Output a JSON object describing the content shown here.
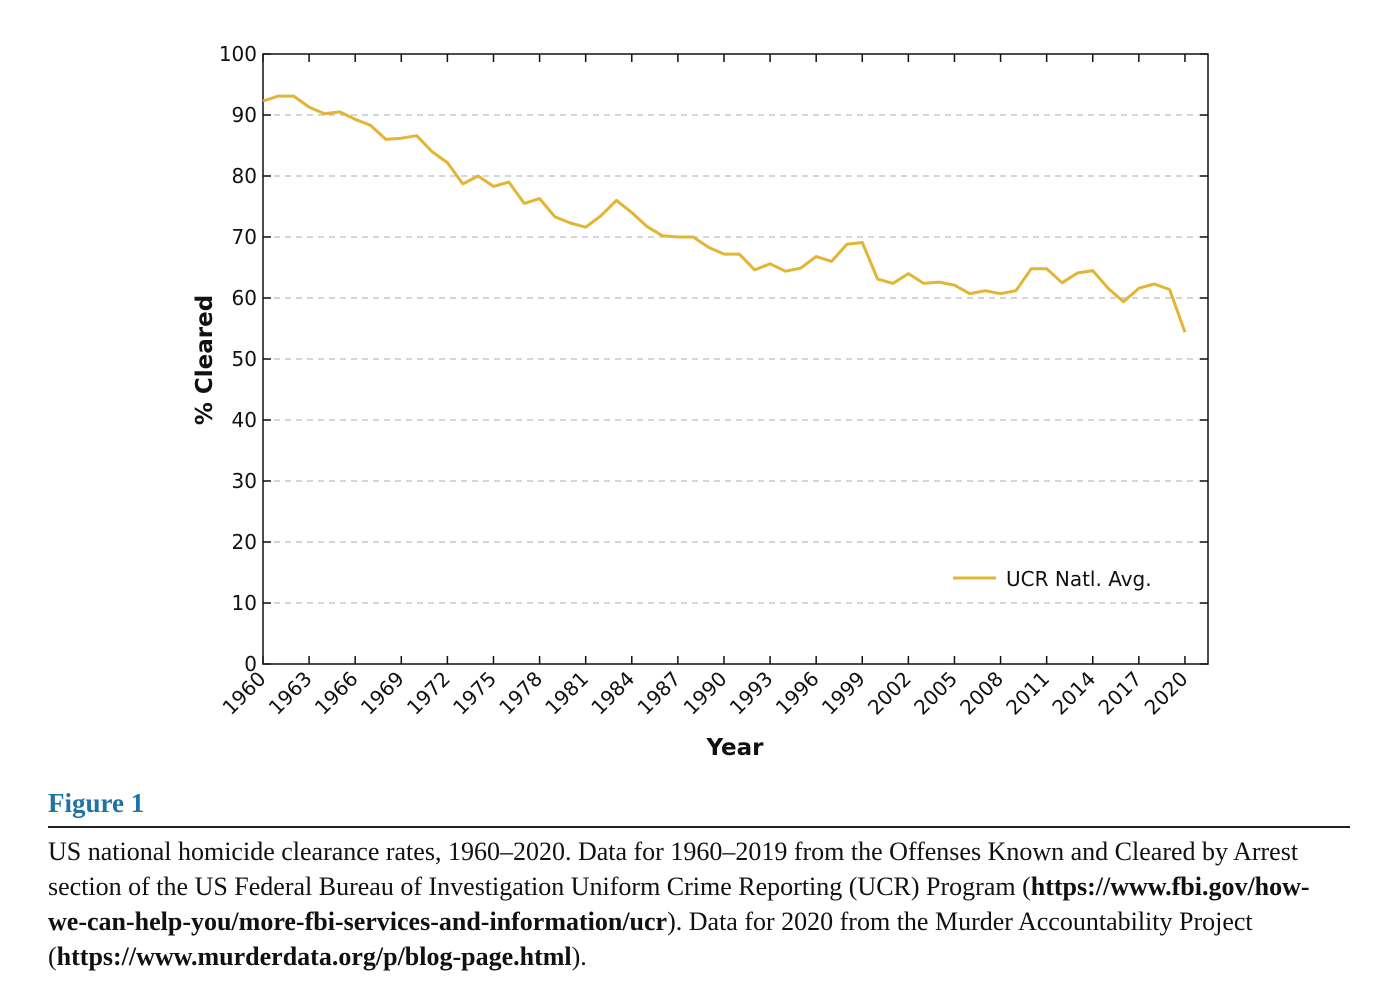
{
  "chart_data": {
    "type": "line",
    "xlabel": "Year",
    "ylabel": "% Cleared",
    "ylim": [
      0,
      100
    ],
    "xlim": [
      1960,
      2021.5
    ],
    "y_ticks": [
      0,
      10,
      20,
      30,
      40,
      50,
      60,
      70,
      80,
      90,
      100
    ],
    "x_ticks": [
      1960,
      1963,
      1966,
      1969,
      1972,
      1975,
      1978,
      1981,
      1984,
      1987,
      1990,
      1993,
      1996,
      1999,
      2002,
      2005,
      2008,
      2011,
      2014,
      2017,
      2020
    ],
    "grid": "horizontal-dashed",
    "legend_position": "bottom-right",
    "series": [
      {
        "name": "UCR Natl. Avg.",
        "color": "#e3b534",
        "x": [
          1960,
          1961,
          1962,
          1963,
          1964,
          1965,
          1966,
          1967,
          1968,
          1969,
          1970,
          1971,
          1972,
          1973,
          1974,
          1975,
          1976,
          1977,
          1978,
          1979,
          1980,
          1981,
          1982,
          1983,
          1984,
          1985,
          1986,
          1987,
          1988,
          1989,
          1990,
          1991,
          1992,
          1993,
          1994,
          1995,
          1996,
          1997,
          1998,
          1999,
          2000,
          2001,
          2002,
          2003,
          2004,
          2005,
          2006,
          2007,
          2008,
          2009,
          2010,
          2011,
          2012,
          2013,
          2014,
          2015,
          2016,
          2017,
          2018,
          2019,
          2020
        ],
        "values": [
          92.3,
          93.1,
          93.1,
          91.3,
          90.2,
          90.5,
          89.3,
          88.3,
          86.0,
          86.2,
          86.6,
          84.0,
          82.2,
          78.7,
          80.0,
          78.3,
          79.0,
          75.5,
          76.3,
          73.3,
          72.3,
          71.6,
          73.5,
          76.0,
          74.0,
          71.7,
          70.2,
          70.0,
          70.0,
          68.3,
          67.2,
          67.2,
          64.6,
          65.6,
          64.4,
          64.9,
          66.8,
          66.0,
          68.8,
          69.1,
          63.1,
          62.4,
          64.0,
          62.4,
          62.6,
          62.1,
          60.7,
          61.2,
          60.7,
          61.2,
          64.8,
          64.8,
          62.5,
          64.1,
          64.5,
          61.6,
          59.4,
          61.6,
          62.3,
          61.4,
          54.4
        ]
      }
    ]
  },
  "figure": {
    "label": "Figure 1",
    "caption_part1": "US national homicide clearance rates, 1960–2020. Data for 1960–2019 from the Offenses Known and Cleared by Arrest section of the US Federal Bureau of Investigation Uniform Crime Reporting (UCR) Program (",
    "caption_link1": "https://www.fbi.gov/how-we-can-help-you/more-fbi-services-and-information/ucr",
    "caption_part2": "). Data for 2020 from the Murder Accountability Project (",
    "caption_link2": "https://www.murderdata.org/p/blog-page.html",
    "caption_part3": ")."
  }
}
